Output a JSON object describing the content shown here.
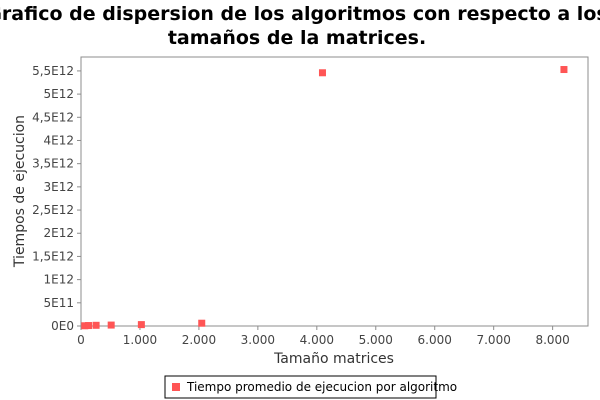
{
  "chart_data": {
    "type": "scatter",
    "title_line1": "Grafico de dispersion de los algoritmos con respecto a los",
    "title_line2": "tamaños de la matrices.",
    "xlabel": "Tamaño matrices",
    "ylabel": "Tiempos de ejecucion",
    "xlim": [
      0,
      8600
    ],
    "ylim": [
      0,
      5800000000000
    ],
    "x_ticks": [
      {
        "value": 0,
        "label": "0"
      },
      {
        "value": 1000,
        "label": "1.000"
      },
      {
        "value": 2000,
        "label": "2.000"
      },
      {
        "value": 3000,
        "label": "3.000"
      },
      {
        "value": 4000,
        "label": "4.000"
      },
      {
        "value": 5000,
        "label": "5.000"
      },
      {
        "value": 6000,
        "label": "6.000"
      },
      {
        "value": 7000,
        "label": "7.000"
      },
      {
        "value": 8000,
        "label": "8.000"
      }
    ],
    "y_ticks": [
      {
        "value": 0,
        "label": "0E0"
      },
      {
        "value": 500000000000,
        "label": "5E11"
      },
      {
        "value": 1000000000000,
        "label": "1E12"
      },
      {
        "value": 1500000000000,
        "label": "1,5E12"
      },
      {
        "value": 2000000000000,
        "label": "2E12"
      },
      {
        "value": 2500000000000,
        "label": "2,5E12"
      },
      {
        "value": 3000000000000,
        "label": "3E12"
      },
      {
        "value": 3500000000000,
        "label": "3,5E12"
      },
      {
        "value": 4000000000000,
        "label": "4E12"
      },
      {
        "value": 4500000000000,
        "label": "4,5E12"
      },
      {
        "value": 5000000000000,
        "label": "5E12"
      },
      {
        "value": 5500000000000,
        "label": "5,5E12"
      }
    ],
    "grid": false,
    "legend_position": "bottom",
    "series": [
      {
        "name": "Tiempo promedio de ejecucion por algoritmo",
        "color": "#ff5555",
        "points": [
          {
            "x": 64,
            "y": 5000000000
          },
          {
            "x": 128,
            "y": 10000000000
          },
          {
            "x": 256,
            "y": 15000000000
          },
          {
            "x": 512,
            "y": 20000000000
          },
          {
            "x": 1024,
            "y": 30000000000
          },
          {
            "x": 2048,
            "y": 60000000000
          },
          {
            "x": 4096,
            "y": 5460000000000
          },
          {
            "x": 8192,
            "y": 5530000000000
          }
        ]
      }
    ]
  }
}
